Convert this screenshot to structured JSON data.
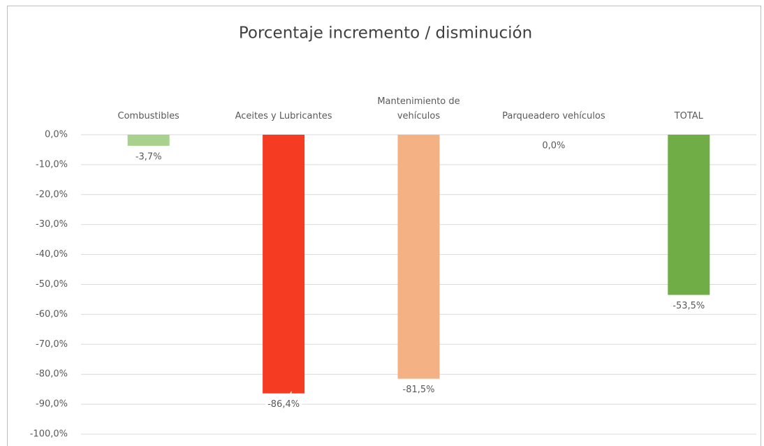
{
  "chart_data": {
    "type": "bar",
    "title": "Porcentaje incremento / disminución",
    "categories": [
      "Combustibles",
      "Aceites y Lubricantes",
      "Mantenimiento de vehículos",
      "Parqueadero vehículos",
      "TOTAL"
    ],
    "values": [
      -3.7,
      -86.4,
      -81.5,
      0,
      -53.5
    ],
    "value_labels": [
      "-3,7%",
      "-86,4%",
      "-81,5%",
      "0,0%",
      "-53,5%"
    ],
    "colors": [
      "#a9d18e",
      "#f53b21",
      "#f4b183",
      "#c5e0b4",
      "#70ad47"
    ],
    "ylim": [
      -100,
      0
    ],
    "yticks": [
      {
        "value": 0,
        "label": "0,0%"
      },
      {
        "value": -10,
        "label": "-10,0%"
      },
      {
        "value": -20,
        "label": "-20,0%"
      },
      {
        "value": -30,
        "label": "-30,0%"
      },
      {
        "value": -40,
        "label": "-40,0%"
      },
      {
        "value": -50,
        "label": "-50,0%"
      },
      {
        "value": -60,
        "label": "-60,0%"
      },
      {
        "value": -70,
        "label": "-70,0%"
      },
      {
        "value": -80,
        "label": "-80,0%"
      },
      {
        "value": -90,
        "label": "-90,0%"
      },
      {
        "value": -100,
        "label": "-100,0%"
      }
    ],
    "grid": true
  }
}
